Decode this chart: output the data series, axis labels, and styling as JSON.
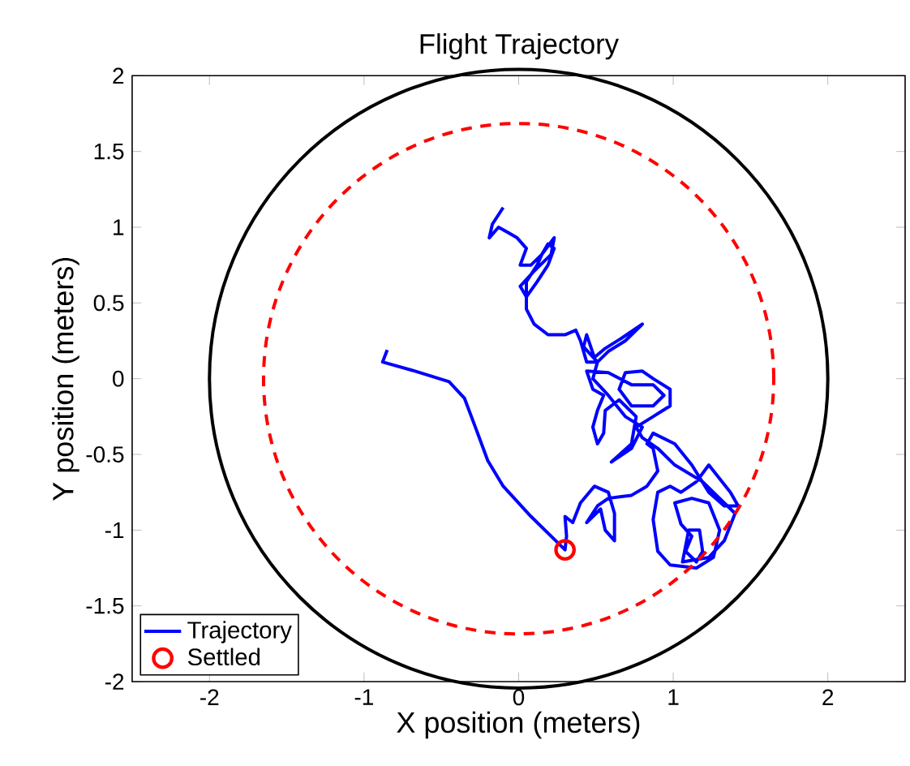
{
  "chart_data": {
    "type": "line",
    "title": "Flight Trajectory",
    "xlabel": "X position (meters)",
    "ylabel": "Y position (meters)",
    "xlim": [
      -2.5,
      2.5
    ],
    "ylim": [
      -2,
      2
    ],
    "xticks": [
      -2,
      -1,
      0,
      1,
      2
    ],
    "yticks": [
      -2,
      -1.5,
      -1,
      -0.5,
      0,
      0.5,
      1,
      1.5,
      2
    ],
    "legend": "bottom left",
    "series": [
      {
        "type": "line",
        "name": "Trajectory",
        "color": "#0000ff",
        "line_style": "solid",
        "marker": "none",
        "x": [
          -0.85,
          -0.88,
          -0.67,
          -0.45,
          -0.35,
          -0.28,
          -0.2,
          -0.1,
          0.08,
          0.26,
          0.3,
          0.31,
          0.3,
          0.35,
          0.4,
          0.49,
          0.58,
          0.62,
          0.62,
          0.56,
          0.53,
          0.44,
          0.51,
          0.58,
          0.73,
          0.83,
          0.9,
          0.87,
          0.83,
          0.87,
          1.01,
          1.12,
          1.23,
          1.33,
          1.42,
          1.37,
          1.23,
          1.15,
          1.05,
          0.98,
          0.9,
          0.87,
          0.9,
          0.98,
          1.15,
          1.26,
          1.3,
          1.23,
          1.12,
          1.01,
          1.05,
          1.12,
          1.08,
          1.15,
          1.19,
          1.17,
          1.1,
          1.06,
          1.23,
          1.33,
          1.4,
          1.3,
          1.19,
          1.01,
          0.9,
          0.8,
          0.76,
          0.87,
          0.98,
          0.98,
          0.87,
          0.8,
          0.69,
          0.65,
          0.73,
          0.87,
          0.94,
          0.87,
          0.73,
          0.58,
          0.44,
          0.48,
          0.55,
          0.51,
          0.48,
          0.51,
          0.55,
          0.56,
          0.65,
          0.76,
          0.73,
          0.6,
          0.73,
          0.8,
          0.69,
          0.58,
          0.48,
          0.51,
          0.42,
          0.44,
          0.49,
          0.56,
          0.67,
          0.8,
          0.69,
          0.58,
          0.51,
          0.44,
          0.4,
          0.37,
          0.3,
          0.19,
          0.1,
          0.05,
          0.05,
          0.12,
          0.15,
          0.19,
          0.23,
          0.19,
          0.12,
          0.05,
          0.01,
          0.1,
          0.21,
          0.23,
          0.15,
          0.08,
          0.01,
          0.05,
          -0.01,
          -0.06,
          -0.13,
          -0.19,
          -0.17,
          -0.1
        ],
        "values": [
          0.19,
          0.11,
          0.05,
          -0.02,
          -0.13,
          -0.32,
          -0.54,
          -0.71,
          -0.91,
          -1.09,
          -1.13,
          -1.04,
          -0.91,
          -0.95,
          -0.82,
          -0.71,
          -0.75,
          -0.89,
          -1.07,
          -1.0,
          -0.86,
          -0.95,
          -0.84,
          -0.79,
          -0.77,
          -0.71,
          -0.61,
          -0.46,
          -0.43,
          -0.36,
          -0.43,
          -0.57,
          -0.75,
          -0.84,
          -0.84,
          -0.75,
          -0.57,
          -0.68,
          -0.75,
          -0.71,
          -0.75,
          -0.93,
          -1.14,
          -1.23,
          -1.25,
          -1.18,
          -1.0,
          -0.82,
          -0.79,
          -0.82,
          -0.96,
          -1.04,
          -1.14,
          -1.21,
          -1.14,
          -1.0,
          -1.0,
          -1.21,
          -1.18,
          -1.07,
          -0.89,
          -0.79,
          -0.68,
          -0.57,
          -0.46,
          -0.39,
          -0.32,
          -0.25,
          -0.18,
          -0.07,
          0,
          0.05,
          0.04,
          -0.07,
          -0.18,
          -0.18,
          -0.11,
          -0.04,
          -0.04,
          0.04,
          0.05,
          -0.07,
          -0.11,
          -0.21,
          -0.32,
          -0.43,
          -0.36,
          -0.21,
          -0.14,
          -0.25,
          -0.43,
          -0.55,
          -0.46,
          -0.32,
          -0.25,
          -0.11,
          0,
          0.11,
          0.21,
          0.29,
          0.14,
          0.2,
          0.27,
          0.36,
          0.25,
          0.18,
          0.11,
          0.11,
          0.25,
          0.32,
          0.29,
          0.29,
          0.36,
          0.46,
          0.64,
          0.75,
          0.82,
          0.89,
          0.86,
          0.75,
          0.64,
          0.54,
          0.61,
          0.71,
          0.82,
          0.93,
          0.82,
          0.75,
          0.75,
          0.86,
          0.93,
          0.96,
          1.0,
          0.93,
          1.02,
          1.13
        ]
      },
      {
        "type": "scatter",
        "name": "Settled",
        "color": "#ff0000",
        "marker": "circle",
        "x": [
          0.3
        ],
        "values": [
          -1.13
        ]
      }
    ]
  }
}
